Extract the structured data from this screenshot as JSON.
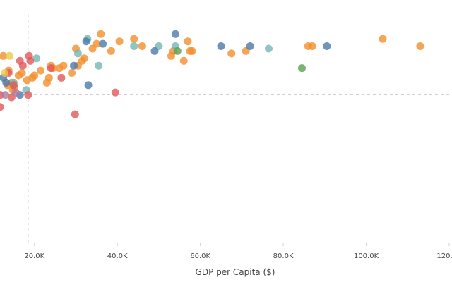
{
  "chart_data": {
    "type": "scatter",
    "title": "",
    "xlabel": "GDP per Capita ($)",
    "ylabel": "",
    "xlim": [
      11700,
      120000
    ],
    "ylim": [
      0,
      100
    ],
    "x_ticks": [
      {
        "value": 20000,
        "label": "20.0K"
      },
      {
        "value": 40000,
        "label": "40.0K"
      },
      {
        "value": 60000,
        "label": "60.0K"
      },
      {
        "value": 80000,
        "label": "80.0K"
      },
      {
        "value": 100000,
        "label": "100.0K"
      },
      {
        "value": 120000,
        "label": "120.0K"
      }
    ],
    "reference_lines": {
      "vertical_x": 18500,
      "horizontal_y": 61
    },
    "group_colors": {
      "orange": "#f28e2b",
      "teal": "#76b7b2",
      "blue": "#4e79a7",
      "red": "#e15759",
      "green": "#59a14f",
      "yellow": "#edc948",
      "purple": "#b07aa1"
    },
    "series": [
      {
        "name": "orange",
        "points": [
          [
            13800,
            71
          ],
          [
            14500,
            66
          ],
          [
            15200,
            64
          ],
          [
            17000,
            70
          ],
          [
            19500,
            68
          ],
          [
            20000,
            69
          ],
          [
            23500,
            68
          ],
          [
            24500,
            72
          ],
          [
            26000,
            72
          ],
          [
            29000,
            70
          ],
          [
            30500,
            73
          ],
          [
            31500,
            75
          ],
          [
            32000,
            76
          ],
          [
            30000,
            80
          ],
          [
            34000,
            80
          ],
          [
            35000,
            82
          ],
          [
            38500,
            79
          ],
          [
            40500,
            83
          ],
          [
            46000,
            81
          ],
          [
            53000,
            77
          ],
          [
            53500,
            79
          ],
          [
            56000,
            75
          ],
          [
            57000,
            83
          ],
          [
            58000,
            79
          ],
          [
            67500,
            78
          ],
          [
            71000,
            79
          ],
          [
            86000,
            81
          ],
          [
            87000,
            81
          ],
          [
            104000,
            84
          ],
          [
            113000,
            81
          ],
          [
            24000,
            73
          ],
          [
            27000,
            73
          ],
          [
            12500,
            77
          ],
          [
            13500,
            65
          ],
          [
            14800,
            63
          ],
          [
            16200,
            69
          ],
          [
            18200,
            67
          ],
          [
            21500,
            71
          ],
          [
            23000,
            66
          ],
          [
            36000,
            86
          ],
          [
            44000,
            84
          ],
          [
            57500,
            79
          ]
        ]
      },
      {
        "name": "teal",
        "points": [
          [
            20500,
            76
          ],
          [
            30500,
            78
          ],
          [
            32800,
            84
          ],
          [
            35500,
            73
          ],
          [
            44000,
            81
          ],
          [
            50000,
            81
          ],
          [
            54000,
            81
          ],
          [
            76500,
            80
          ],
          [
            15000,
            66
          ],
          [
            18000,
            63
          ]
        ]
      },
      {
        "name": "blue",
        "points": [
          [
            12500,
            68
          ],
          [
            29500,
            73
          ],
          [
            32500,
            83
          ],
          [
            33000,
            65
          ],
          [
            36500,
            82
          ],
          [
            49000,
            79
          ],
          [
            54000,
            86
          ],
          [
            65000,
            81
          ],
          [
            72000,
            81
          ],
          [
            90500,
            81
          ],
          [
            13200,
            66
          ],
          [
            16500,
            61
          ]
        ]
      },
      {
        "name": "red",
        "points": [
          [
            11700,
            56
          ],
          [
            11800,
            61
          ],
          [
            14500,
            60
          ],
          [
            15000,
            65
          ],
          [
            16500,
            75
          ],
          [
            18500,
            61
          ],
          [
            18700,
            77
          ],
          [
            19000,
            75
          ],
          [
            24000,
            72
          ],
          [
            26500,
            68
          ],
          [
            29800,
            53
          ],
          [
            39500,
            62
          ],
          [
            13800,
            70
          ],
          [
            17200,
            73
          ]
        ]
      },
      {
        "name": "green",
        "points": [
          [
            54500,
            79
          ],
          [
            84500,
            72
          ]
        ]
      },
      {
        "name": "yellow",
        "points": [
          [
            14000,
            77
          ],
          [
            12800,
            70
          ]
        ]
      },
      {
        "name": "purple",
        "points": [
          [
            13000,
            61
          ],
          [
            15500,
            62
          ]
        ]
      }
    ]
  }
}
